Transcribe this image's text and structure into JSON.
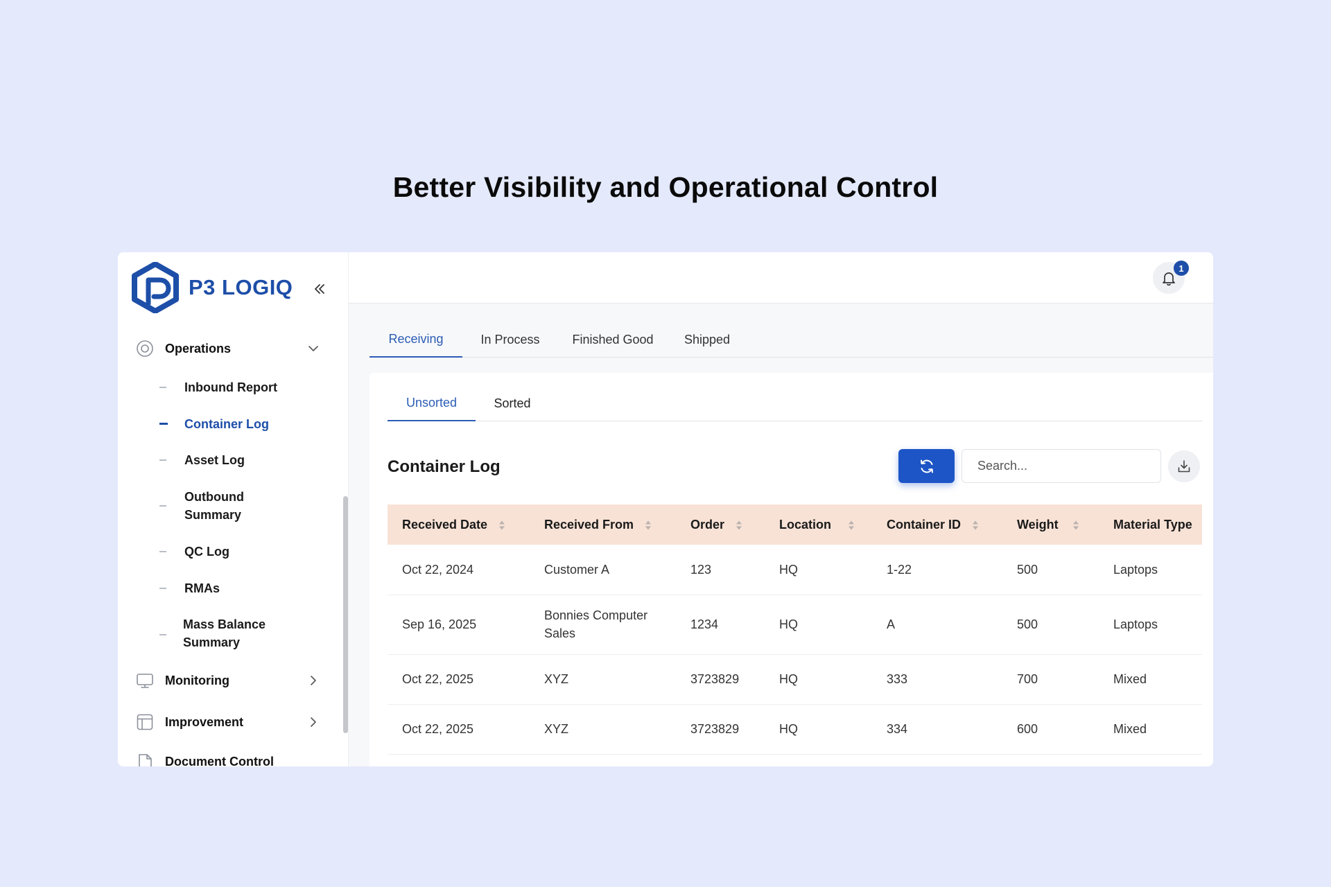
{
  "hero": {
    "title": "Better Visibility and Operational Control"
  },
  "brand": {
    "name": "P3 LOGIQ",
    "accent": "#1d4ea8"
  },
  "sidebar": {
    "groups": {
      "operations": {
        "label": "Operations",
        "icon": "operations-icon"
      },
      "monitoring": {
        "label": "Monitoring",
        "icon": "monitor-icon"
      },
      "improvement": {
        "label": "Improvement",
        "icon": "layout-icon"
      },
      "document_control": {
        "label": "Document Control",
        "icon": "document-icon"
      }
    },
    "items": [
      {
        "label": "Inbound Report",
        "active": false
      },
      {
        "label": "Container Log",
        "active": true
      },
      {
        "label": "Asset Log",
        "active": false
      },
      {
        "label": "Outbound Summary",
        "active": false
      },
      {
        "label": "QC Log",
        "active": false
      },
      {
        "label": "RMAs",
        "active": false
      },
      {
        "label": "Mass Balance Summary",
        "active": false
      }
    ]
  },
  "notifications": {
    "count": "1"
  },
  "tabs": [
    "Receiving",
    "In Process",
    "Finished Good",
    "Shipped"
  ],
  "active_tab": "Receiving",
  "subtabs": [
    "Unsorted",
    "Sorted"
  ],
  "active_subtab": "Unsorted",
  "panel": {
    "title": "Container Log"
  },
  "search": {
    "placeholder": "Search..."
  },
  "table": {
    "columns": [
      "Received Date",
      "Received From",
      "Order",
      "Location",
      "Container ID",
      "Weight",
      "Material Type"
    ],
    "rows": [
      [
        "Oct 22, 2024",
        "Customer A",
        "123",
        "HQ",
        "1-22",
        "500",
        "Laptops"
      ],
      [
        "Sep 16, 2025",
        "Bonnies Computer Sales",
        "1234",
        "HQ",
        "A",
        "500",
        "Laptops"
      ],
      [
        "Oct 22, 2025",
        "XYZ",
        "3723829",
        "HQ",
        "333",
        "700",
        "Mixed"
      ],
      [
        "Oct 22, 2025",
        "XYZ",
        "3723829",
        "HQ",
        "334",
        "600",
        "Mixed"
      ]
    ],
    "header_bg": "#f8e2d6"
  }
}
